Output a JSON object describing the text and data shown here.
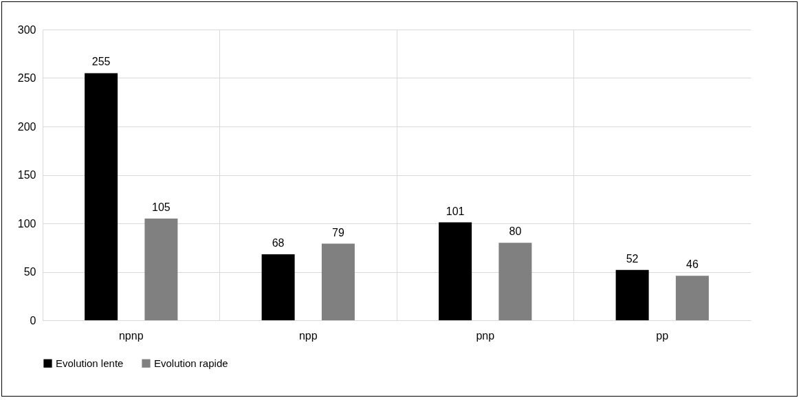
{
  "chart_data": {
    "type": "bar",
    "categories": [
      "npnp",
      "npp",
      "pnp",
      "pp"
    ],
    "series": [
      {
        "name": "Evolution lente",
        "color": "#000000",
        "values": [
          255,
          68,
          101,
          52
        ]
      },
      {
        "name": "Evolution rapide",
        "color": "#808080",
        "values": [
          105,
          79,
          80,
          46
        ]
      }
    ],
    "ylim": [
      0,
      300
    ],
    "yticks": [
      0,
      50,
      100,
      150,
      200,
      250,
      300
    ],
    "grid": true,
    "legend": "bottom",
    "data_labels": true
  }
}
